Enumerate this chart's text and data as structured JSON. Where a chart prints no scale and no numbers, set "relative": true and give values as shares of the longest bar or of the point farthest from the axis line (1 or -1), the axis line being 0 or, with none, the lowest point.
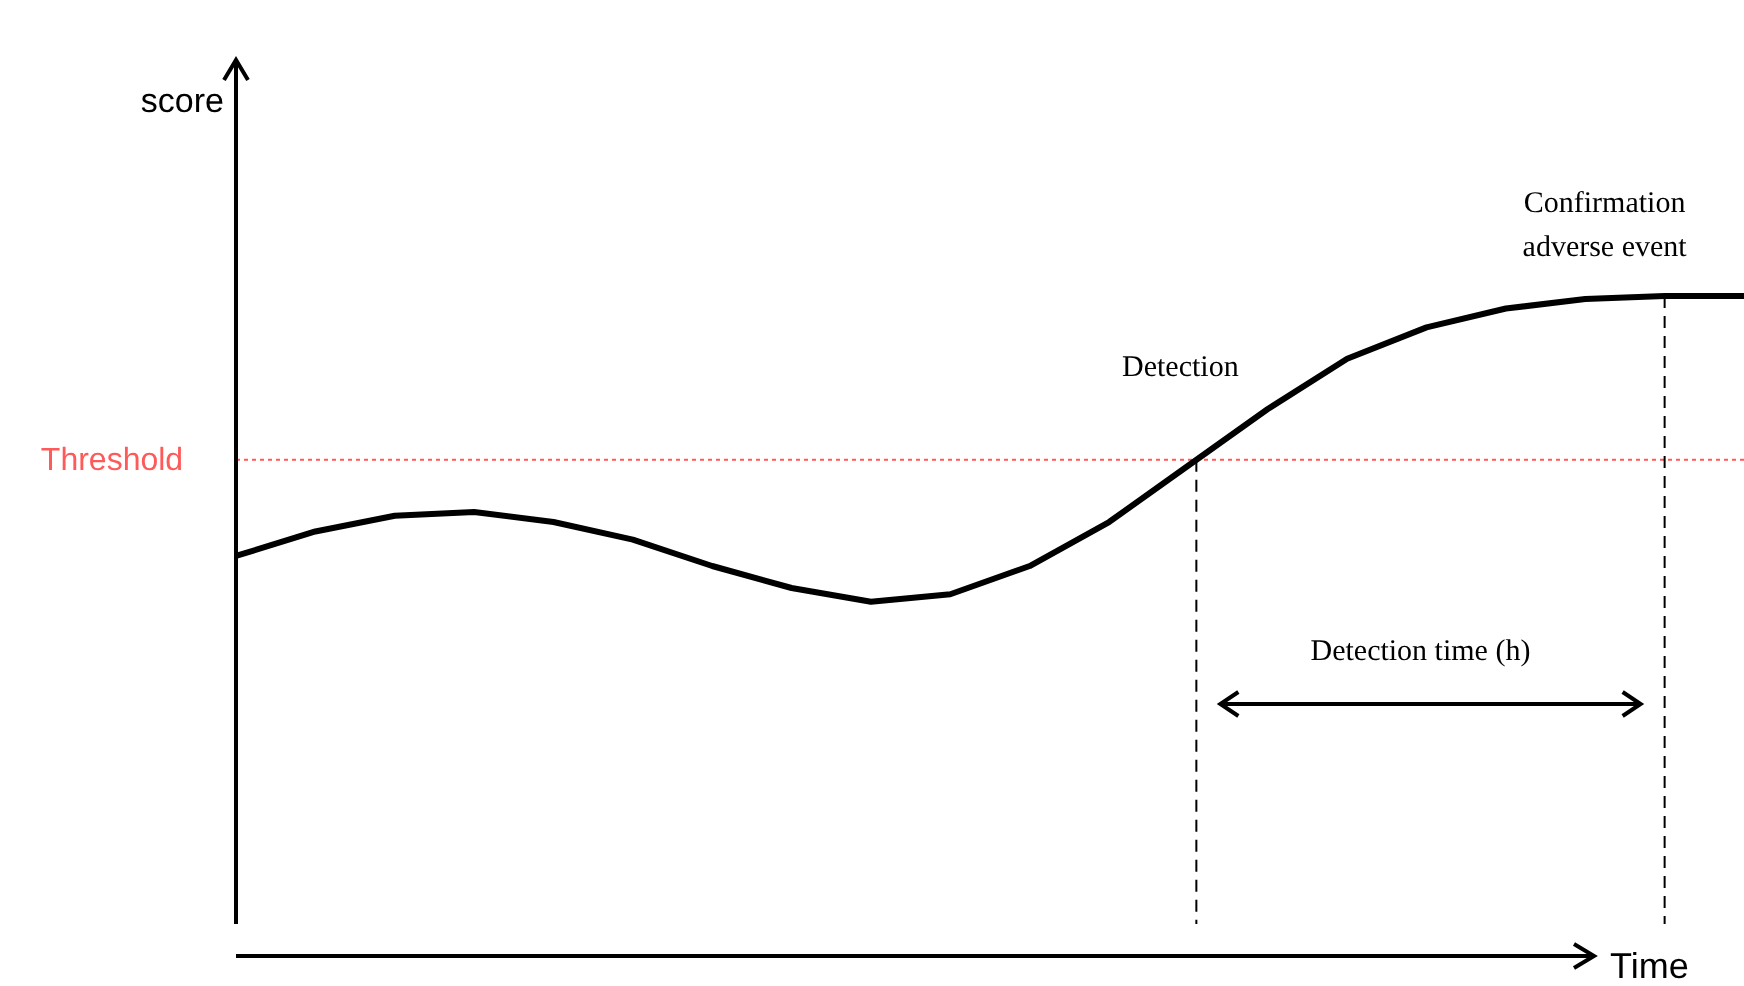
{
  "chart_data": {
    "type": "line",
    "relative": true,
    "xlabel": "Time",
    "categories": [
      null,
      null,
      null,
      null,
      null,
      null,
      null,
      null,
      null,
      null,
      null,
      null,
      null,
      null,
      null,
      null,
      null,
      null,
      null,
      null
    ],
    "series": [
      {
        "color": "#000000",
        "values": [
          0.586,
          0.625,
          0.65,
          0.656,
          0.64,
          0.612,
          0.57,
          0.535,
          0.513,
          0.525,
          0.57,
          0.64,
          0.73,
          0.82,
          0.9,
          0.95,
          0.98,
          0.995,
          1,
          1
        ]
      }
    ],
    "ref_lines": [
      {
        "axis": "y",
        "value": 0.739,
        "label": "Threshold",
        "color": "#ff5a5a",
        "line_style": "dotted"
      }
    ],
    "annotations": [
      "score",
      "Detection",
      "Confirmation adverse event",
      "Detection time (h)"
    ]
  }
}
